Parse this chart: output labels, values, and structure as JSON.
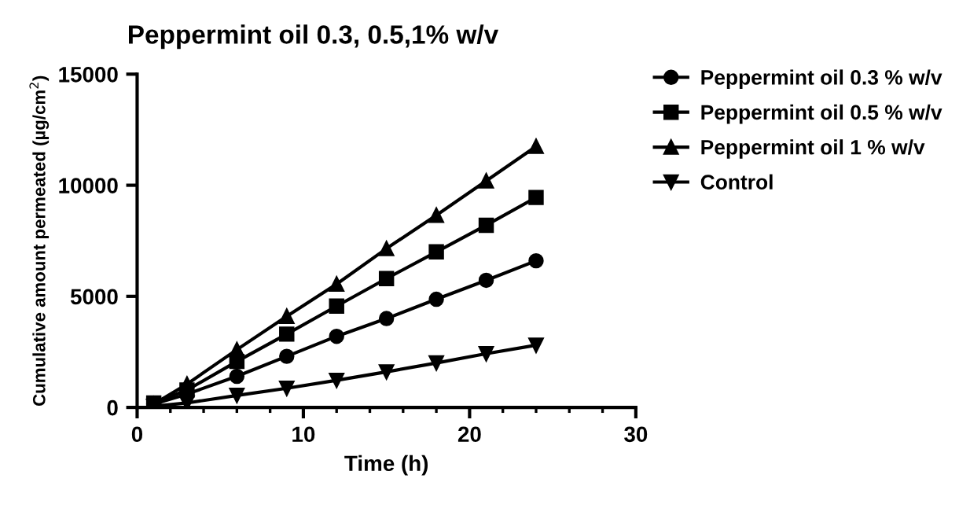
{
  "chart_data": {
    "type": "line",
    "title": "Peppermint oil 0.3, 0.5,1% w/v",
    "xlabel": "Time (h)",
    "ylabel": "Cumulative amount permeated (µg/cm$^{2}$)",
    "x": [
      1,
      3,
      6,
      9,
      12,
      15,
      18,
      21,
      24
    ],
    "series": [
      {
        "name": "Peppermint oil 0.3 % w/v",
        "color": "#000000",
        "marker": "circle",
        "values": [
          150,
          600,
          1400,
          2300,
          3200,
          4000,
          4870,
          5720,
          6600
        ]
      },
      {
        "name": "Peppermint oil 0.5 % w/v",
        "color": "#000000",
        "marker": "square",
        "values": [
          200,
          780,
          2070,
          3300,
          4560,
          5800,
          7000,
          8200,
          9450
        ]
      },
      {
        "name": "Peppermint oil 1 % w/v",
        "color": "#000000",
        "marker": "triangle",
        "values": [
          150,
          1050,
          2600,
          4100,
          5550,
          7150,
          8650,
          10200,
          11750
        ]
      },
      {
        "name": "Control",
        "color": "#000000",
        "marker": "triangle_down",
        "values": [
          50,
          200,
          540,
          860,
          1220,
          1600,
          2000,
          2420,
          2800
        ]
      }
    ],
    "xlim": [
      0,
      30
    ],
    "xticks": [
      0,
      10,
      20,
      30
    ],
    "ylim": [
      0,
      15000
    ],
    "yticks": [
      0,
      5000,
      10000,
      15000
    ],
    "grid": false,
    "legend": "top right",
    "line_style": "solid"
  }
}
